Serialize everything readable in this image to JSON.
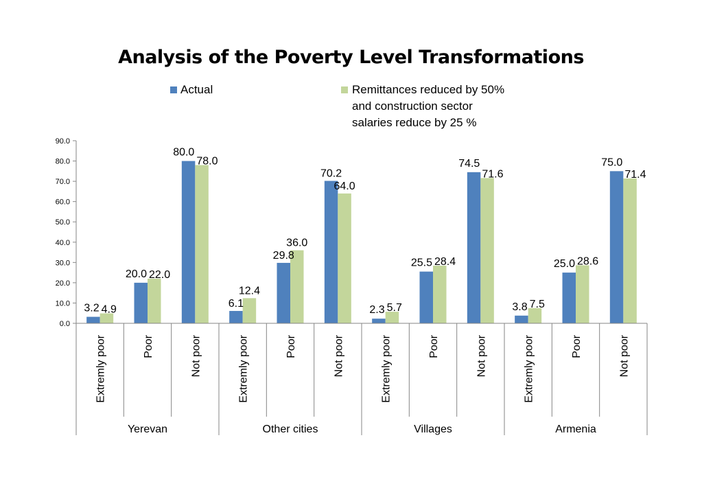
{
  "chart_data": {
    "type": "bar",
    "title": "Analysis of the Poverty Level Transformations",
    "groups": [
      "Yerevan",
      "Other cities",
      "Villages",
      "Armenia"
    ],
    "subcategories": [
      "Extremly poor",
      "Poor",
      "Not poor"
    ],
    "series": [
      {
        "name": "Actual",
        "color": "#4F81BD",
        "values": [
          3.2,
          20.0,
          80.0,
          6.1,
          29.8,
          70.2,
          2.3,
          25.5,
          74.5,
          3.8,
          25.0,
          75.0
        ]
      },
      {
        "name": "Remittances reduced by 50% and construction sector salaries reduce by 25 %",
        "name_lines": [
          "Remittances reduced by 50%",
          "and construction sector",
          "salaries reduce by 25 %"
        ],
        "color": "#C3D69B",
        "values": [
          4.9,
          22.0,
          78.0,
          12.4,
          36.0,
          64.0,
          5.7,
          28.4,
          71.6,
          7.5,
          28.6,
          71.4
        ]
      }
    ],
    "ylim": [
      0,
      90
    ],
    "yticks": [
      "0.0",
      "10.0",
      "20.0",
      "30.0",
      "40.0",
      "50.0",
      "60.0",
      "70.0",
      "80.0",
      "90.0"
    ],
    "legend_position": "top",
    "grid": false
  }
}
